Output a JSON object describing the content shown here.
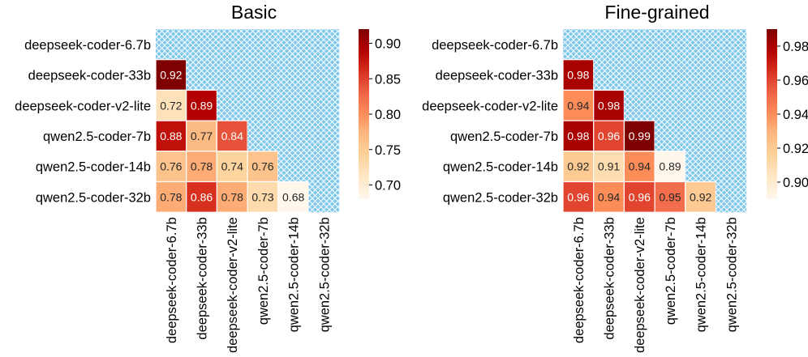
{
  "chart_data": [
    {
      "type": "heatmap",
      "title": "Basic",
      "rows": [
        "deepseek-coder-6.7b",
        "deepseek-coder-33b",
        "deepseek-coder-v2-lite",
        "qwen2.5-coder-7b",
        "qwen2.5-coder-14b",
        "qwen2.5-coder-32b"
      ],
      "columns": [
        "deepseek-coder-6.7b",
        "deepseek-coder-33b",
        "deepseek-coder-v2-lite",
        "qwen2.5-coder-7b",
        "qwen2.5-coder-14b",
        "qwen2.5-coder-32b"
      ],
      "values": [
        [
          null,
          null,
          null,
          null,
          null,
          null
        ],
        [
          0.92,
          null,
          null,
          null,
          null,
          null
        ],
        [
          0.72,
          0.89,
          null,
          null,
          null,
          null
        ],
        [
          0.88,
          0.77,
          0.84,
          null,
          null,
          null
        ],
        [
          0.76,
          0.78,
          0.74,
          0.76,
          null,
          null
        ],
        [
          0.78,
          0.86,
          0.78,
          0.73,
          0.68,
          null
        ]
      ],
      "colorbar": {
        "range": [
          0.68,
          0.92
        ],
        "ticks": [
          0.7,
          0.75,
          0.8,
          0.85,
          0.9
        ],
        "tick_labels": [
          "0.70",
          "0.75",
          "0.80",
          "0.85",
          "0.90"
        ]
      },
      "masked_cell_style": "hatched light blue (diagonal and upper triangle)",
      "colormap": "OrRd"
    },
    {
      "type": "heatmap",
      "title": "Fine-grained",
      "rows": [
        "deepseek-coder-6.7b",
        "deepseek-coder-33b",
        "deepseek-coder-v2-lite",
        "qwen2.5-coder-7b",
        "qwen2.5-coder-14b",
        "qwen2.5-coder-32b"
      ],
      "columns": [
        "deepseek-coder-6.7b",
        "deepseek-coder-33b",
        "deepseek-coder-v2-lite",
        "qwen2.5-coder-7b",
        "qwen2.5-coder-14b",
        "qwen2.5-coder-32b"
      ],
      "values": [
        [
          null,
          null,
          null,
          null,
          null,
          null
        ],
        [
          0.98,
          null,
          null,
          null,
          null,
          null
        ],
        [
          0.94,
          0.98,
          null,
          null,
          null,
          null
        ],
        [
          0.98,
          0.96,
          0.99,
          null,
          null,
          null
        ],
        [
          0.92,
          0.91,
          0.94,
          0.89,
          null,
          null
        ],
        [
          0.96,
          0.94,
          0.96,
          0.95,
          0.92,
          null
        ]
      ],
      "colorbar": {
        "range": [
          0.89,
          0.99
        ],
        "ticks": [
          0.9,
          0.92,
          0.94,
          0.96,
          0.98
        ],
        "tick_labels": [
          "0.90",
          "0.92",
          "0.94",
          "0.96",
          "0.98"
        ]
      },
      "masked_cell_style": "hatched light blue (diagonal and upper triangle)",
      "colormap": "OrRd"
    }
  ],
  "colors": {
    "mask_fill": "#7fc8ec",
    "mask_hatch": "#ffffff",
    "cell_border": "#ffffff",
    "text": "#000000"
  }
}
